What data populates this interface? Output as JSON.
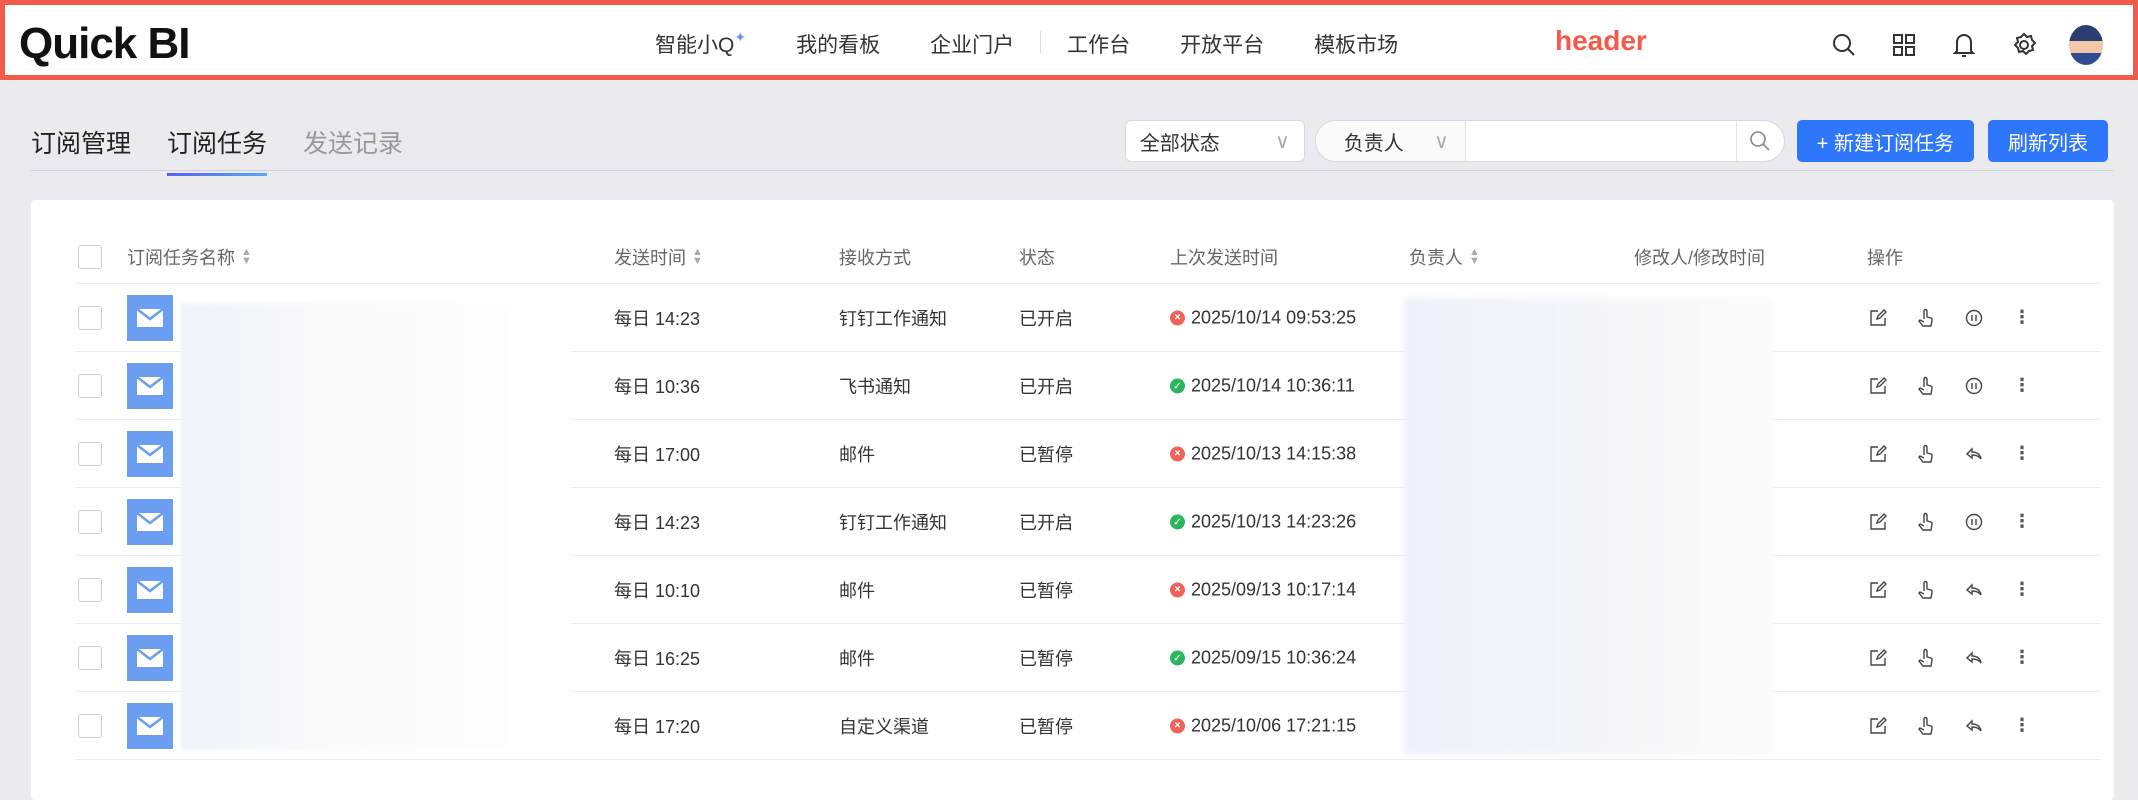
{
  "header": {
    "logo": "Quick BI",
    "label": "header",
    "nav": [
      "智能小Q",
      "我的看板",
      "企业门户",
      "工作台",
      "开放平台",
      "模板市场"
    ]
  },
  "tabs": {
    "title": "订阅管理",
    "items": [
      "订阅任务",
      "发送记录"
    ]
  },
  "toolbar": {
    "status_filter": "全部状态",
    "owner_filter": "负责人",
    "new_button": "+ 新建订阅任务",
    "refresh_button": "刷新列表"
  },
  "table": {
    "columns": [
      "订阅任务名称",
      "发送时间",
      "接收方式",
      "状态",
      "上次发送时间",
      "负责人",
      "修改人/修改时间",
      "操作"
    ],
    "rows": [
      {
        "send_time": "每日 14:23",
        "channel": "钉钉工作通知",
        "status": "已开启",
        "last_sent": "2025/10/14 09:53:25",
        "result": "error",
        "toggle": "pause"
      },
      {
        "send_time": "每日 10:36",
        "channel": "飞书通知",
        "status": "已开启",
        "last_sent": "2025/10/14 10:36:11",
        "result": "success",
        "toggle": "pause"
      },
      {
        "send_time": "每日 17:00",
        "channel": "邮件",
        "status": "已暂停",
        "last_sent": "2025/10/13 14:15:38",
        "result": "error",
        "toggle": "resume"
      },
      {
        "send_time": "每日 14:23",
        "channel": "钉钉工作通知",
        "status": "已开启",
        "last_sent": "2025/10/13 14:23:26",
        "result": "success",
        "toggle": "pause"
      },
      {
        "send_time": "每日 10:10",
        "channel": "邮件",
        "status": "已暂停",
        "last_sent": "2025/09/13 10:17:14",
        "result": "error",
        "toggle": "resume"
      },
      {
        "send_time": "每日 16:25",
        "channel": "邮件",
        "status": "已暂停",
        "last_sent": "2025/09/15 10:36:24",
        "result": "success",
        "toggle": "resume"
      },
      {
        "send_time": "每日 17:20",
        "channel": "自定义渠道",
        "status": "已暂停",
        "last_sent": "2025/10/06 17:21:15",
        "result": "error",
        "toggle": "resume"
      }
    ]
  },
  "colors": {
    "accent": "#2e76fa",
    "header_border": "#f25a4a",
    "success": "#2db55d",
    "error": "#f0625a",
    "mail_icon": "#6b9ef0"
  }
}
